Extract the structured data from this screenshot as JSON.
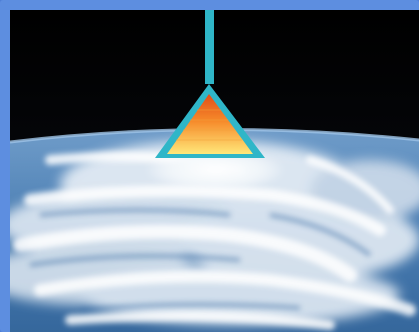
{
  "scene": {
    "description_icons": [
      "earth-horizon-icon",
      "hurricane-cloud-icon",
      "pyramid-beam-icon"
    ],
    "colors": {
      "frame": "#5d8ee0",
      "space": "#050505",
      "beam": "#2fb6c8",
      "pyramid_top": "#e8541a",
      "pyramid_bottom": "#ffe36b",
      "ocean": "#3b6fa8",
      "cloud": "#ffffff"
    }
  }
}
